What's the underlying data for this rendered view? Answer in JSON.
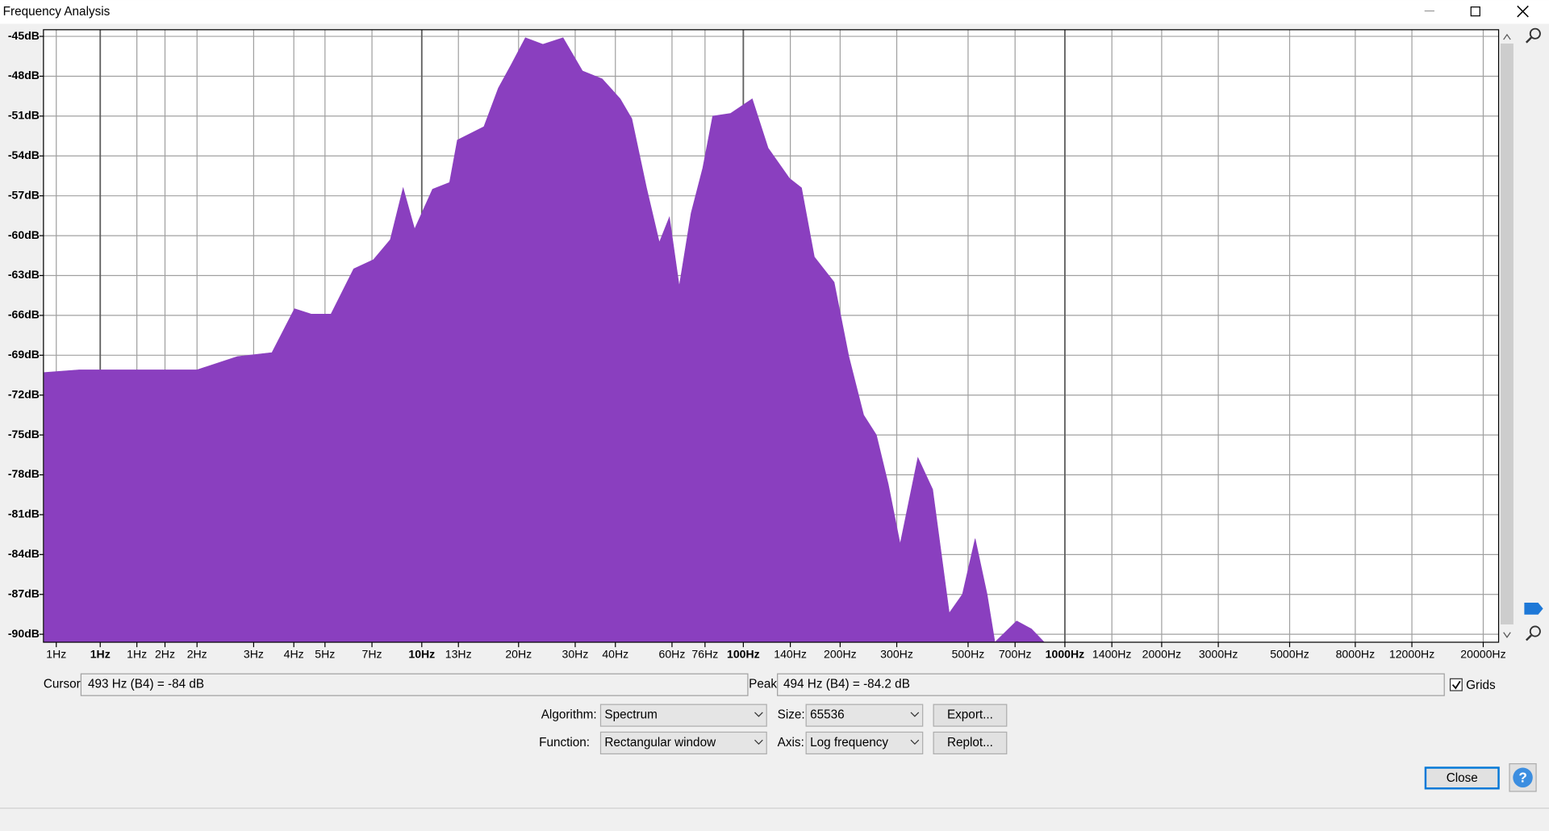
{
  "window": {
    "title": "Frequency Analysis"
  },
  "chart_data": {
    "type": "area",
    "color": "#8a3fbf",
    "log_x": true,
    "grid": true,
    "xlim": [
      0.666,
      22330
    ],
    "ylim": [
      -90.6,
      -44.5
    ],
    "yticks": [
      {
        "value": -45,
        "label": "-45dB"
      },
      {
        "value": -48,
        "label": "-48dB"
      },
      {
        "value": -51,
        "label": "-51dB"
      },
      {
        "value": -54,
        "label": "-54dB"
      },
      {
        "value": -57,
        "label": "-57dB"
      },
      {
        "value": -60,
        "label": "-60dB"
      },
      {
        "value": -63,
        "label": "-63dB"
      },
      {
        "value": -66,
        "label": "-66dB"
      },
      {
        "value": -69,
        "label": "-69dB"
      },
      {
        "value": -72,
        "label": "-72dB"
      },
      {
        "value": -75,
        "label": "-75dB"
      },
      {
        "value": -78,
        "label": "-78dB"
      },
      {
        "value": -81,
        "label": "-81dB"
      },
      {
        "value": -84,
        "label": "-84dB"
      },
      {
        "value": -87,
        "label": "-87dB"
      },
      {
        "value": -90,
        "label": "-90dB"
      }
    ],
    "xticks": [
      {
        "value": 0.73,
        "label": "1Hz"
      },
      {
        "value": 1,
        "label": "1Hz"
      },
      {
        "value": 1.3,
        "label": "1Hz"
      },
      {
        "value": 1.59,
        "label": "2Hz"
      },
      {
        "value": 2,
        "label": "2Hz"
      },
      {
        "value": 3,
        "label": "3Hz"
      },
      {
        "value": 4,
        "label": "4Hz"
      },
      {
        "value": 5,
        "label": "5Hz"
      },
      {
        "value": 7,
        "label": "7Hz"
      },
      {
        "value": 10,
        "label": "10Hz"
      },
      {
        "value": 13,
        "label": "13Hz"
      },
      {
        "value": 20,
        "label": "20Hz"
      },
      {
        "value": 30,
        "label": "30Hz"
      },
      {
        "value": 40,
        "label": "40Hz"
      },
      {
        "value": 60,
        "label": "60Hz"
      },
      {
        "value": 76,
        "label": "76Hz"
      },
      {
        "value": 100,
        "label": "100Hz"
      },
      {
        "value": 140,
        "label": "140Hz"
      },
      {
        "value": 200,
        "label": "200Hz"
      },
      {
        "value": 300,
        "label": "300Hz"
      },
      {
        "value": 500,
        "label": "500Hz"
      },
      {
        "value": 700,
        "label": "700Hz"
      },
      {
        "value": 1000,
        "label": "1000Hz"
      },
      {
        "value": 1400,
        "label": "1400Hz"
      },
      {
        "value": 2000,
        "label": "2000Hz"
      },
      {
        "value": 3000,
        "label": "3000Hz"
      },
      {
        "value": 5000,
        "label": "5000Hz"
      },
      {
        "value": 8000,
        "label": "8000Hz"
      },
      {
        "value": 12000,
        "label": "12000Hz"
      },
      {
        "value": 20000,
        "label": "20000Hz"
      }
    ],
    "x": [
      0.67,
      0.86,
      2.0,
      2.67,
      3.42,
      4.02,
      4.53,
      5.22,
      6.14,
      7.08,
      7.98,
      8.75,
      9.5,
      10.8,
      12.2,
      12.9,
      15.6,
      17.3,
      19.0,
      21.0,
      23.8,
      27.5,
      31.6,
      36.4,
      41.4,
      45.0,
      50.0,
      54.8,
      58.9,
      63.2,
      68.8,
      74.8,
      80.3,
      91.2,
      106.6,
      119.4,
      139.3,
      151.7,
      166.3,
      191.6,
      212.9,
      236.7,
      259.3,
      282.3,
      307.4,
      349,
      388,
      437,
      480,
      526,
      573,
      606,
      708,
      787,
      863
    ],
    "values": [
      -70.3,
      -70.1,
      -70.1,
      -69.1,
      -68.8,
      -65.5,
      -65.9,
      -65.9,
      -62.5,
      -61.8,
      -60.3,
      -56.4,
      -59.5,
      -56.5,
      -56.0,
      -52.8,
      -51.8,
      -48.9,
      -47.1,
      -45.1,
      -45.6,
      -45.1,
      -47.6,
      -48.2,
      -49.7,
      -51.2,
      -56.4,
      -60.5,
      -58.6,
      -63.8,
      -58.3,
      -54.9,
      -51.0,
      -50.8,
      -49.7,
      -53.4,
      -55.7,
      -56.4,
      -61.6,
      -63.5,
      -69.1,
      -73.5,
      -75.0,
      -78.7,
      -83.2,
      -76.7,
      -79.1,
      -88.4,
      -87.0,
      -82.8,
      -87.0,
      -90.6,
      -89.0,
      -89.6,
      -90.6
    ]
  },
  "controls": {
    "cursor_label": "Cursor:",
    "cursor_value": "493 Hz (B4) = -84 dB",
    "peak_label": "Peak:",
    "peak_value": "494 Hz (B4) = -84.2 dB",
    "grids_label": "Grids",
    "grids_checked": true,
    "algorithm_label": "Algorithm:",
    "algorithm": "Spectrum",
    "size_label": "Size:",
    "size": "65536",
    "export": "Export...",
    "function_label": "Function:",
    "function": "Rectangular window",
    "axis_label": "Axis:",
    "axis": "Log frequency",
    "replot": "Replot...",
    "close": "Close",
    "help": "?"
  }
}
